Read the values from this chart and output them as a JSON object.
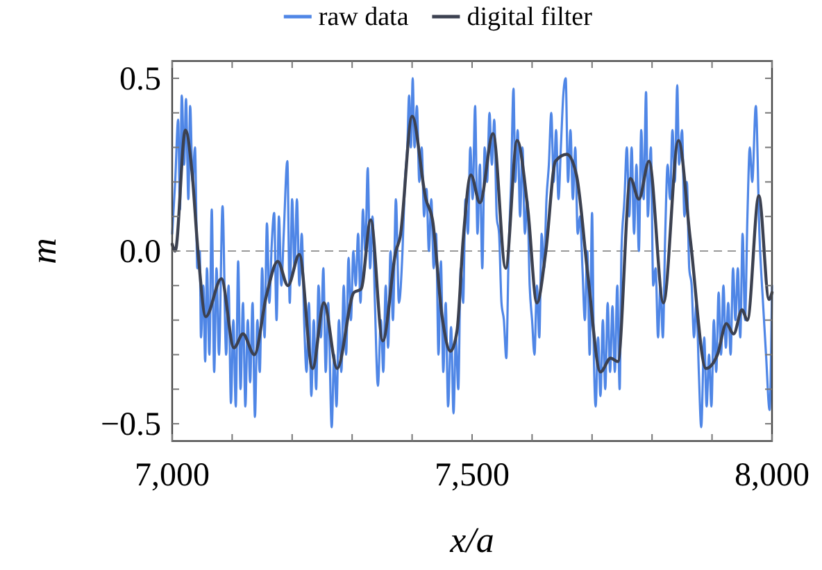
{
  "chart_data": {
    "type": "line",
    "xlabel": "x/a",
    "ylabel": "m",
    "legend": "top",
    "xlim": [
      7000,
      8000
    ],
    "ylim": [
      -0.55,
      0.55
    ],
    "xticks": [
      {
        "value": 7000,
        "label": "7,000"
      },
      {
        "value": 7100,
        "label": null
      },
      {
        "value": 7200,
        "label": null
      },
      {
        "value": 7300,
        "label": null
      },
      {
        "value": 7400,
        "label": null
      },
      {
        "value": 7500,
        "label": "7,500"
      },
      {
        "value": 7600,
        "label": null
      },
      {
        "value": 7700,
        "label": null
      },
      {
        "value": 7800,
        "label": null
      },
      {
        "value": 7900,
        "label": null
      },
      {
        "value": 8000,
        "label": "8,000"
      }
    ],
    "yticks": [
      {
        "value": -0.5,
        "label": "−0.5"
      },
      {
        "value": -0.4,
        "label": null
      },
      {
        "value": -0.3,
        "label": null
      },
      {
        "value": -0.2,
        "label": null
      },
      {
        "value": -0.1,
        "label": null
      },
      {
        "value": 0,
        "label": "0.0"
      },
      {
        "value": 0.1,
        "label": null
      },
      {
        "value": 0.2,
        "label": null
      },
      {
        "value": 0.3,
        "label": null
      },
      {
        "value": 0.4,
        "label": null
      },
      {
        "value": 0.5,
        "label": "0.5"
      }
    ],
    "ref_lines": [
      {
        "axis": "y",
        "value": 0,
        "color": "#999999",
        "line_style": "dashed"
      }
    ],
    "series": [
      {
        "name": "raw data",
        "color": "#4f86e6",
        "x": [
          7000,
          7005,
          7010,
          7013,
          7016,
          7020,
          7023,
          7027,
          7030,
          7034,
          7038,
          7042,
          7046,
          7048,
          7052,
          7055,
          7058,
          7062,
          7066,
          7070,
          7074,
          7078,
          7084,
          7090,
          7094,
          7098,
          7102,
          7106,
          7110,
          7114,
          7118,
          7122,
          7126,
          7130,
          7134,
          7138,
          7142,
          7146,
          7150,
          7154,
          7158,
          7162,
          7166,
          7170,
          7174,
          7178,
          7182,
          7186,
          7192,
          7196,
          7200,
          7204,
          7208,
          7212,
          7216,
          7220,
          7224,
          7228,
          7232,
          7236,
          7240,
          7244,
          7248,
          7252,
          7256,
          7260,
          7266,
          7270,
          7274,
          7278,
          7282,
          7286,
          7290,
          7294,
          7298,
          7302,
          7306,
          7310,
          7314,
          7318,
          7322,
          7326,
          7330,
          7334,
          7338,
          7343,
          7348,
          7352,
          7356,
          7360,
          7364,
          7368,
          7373,
          7378,
          7384,
          7388,
          7392,
          7395,
          7398,
          7401,
          7404,
          7408,
          7412,
          7416,
          7420,
          7424,
          7428,
          7432,
          7436,
          7440,
          7444,
          7448,
          7452,
          7456,
          7460,
          7465,
          7469,
          7473,
          7477,
          7481,
          7485,
          7489,
          7493,
          7497,
          7501,
          7505,
          7509,
          7513,
          7517,
          7521,
          7525,
          7529,
          7533,
          7537,
          7541,
          7545,
          7549,
          7553,
          7557,
          7561,
          7565,
          7569,
          7572,
          7576,
          7580,
          7584,
          7588,
          7592,
          7596,
          7600,
          7604,
          7608,
          7612,
          7616,
          7620,
          7624,
          7628,
          7632,
          7636,
          7640,
          7644,
          7648,
          7652,
          7656,
          7660,
          7664,
          7668,
          7672,
          7676,
          7680,
          7684,
          7688,
          7692,
          7696,
          7700,
          7703,
          7706,
          7710,
          7714,
          7718,
          7722,
          7726,
          7730,
          7734,
          7738,
          7742,
          7746,
          7749,
          7754,
          7758,
          7762,
          7766,
          7770,
          7774,
          7778,
          7782,
          7786,
          7790,
          7793,
          7798,
          7802,
          7806,
          7810,
          7814,
          7818,
          7822,
          7826,
          7830,
          7834,
          7838,
          7842,
          7845,
          7850,
          7854,
          7858,
          7862,
          7866,
          7870,
          7874,
          7878,
          7882,
          7887,
          7891,
          7895,
          7899,
          7903,
          7907,
          7911,
          7915,
          7919,
          7923,
          7927,
          7931,
          7935,
          7939,
          7943,
          7947,
          7951,
          7955,
          7959,
          7963,
          7967,
          7973,
          7979,
          7985,
          7990,
          7996,
          8000
        ],
        "values": [
          0.05,
          0.2,
          0.38,
          0.12,
          0.45,
          0.25,
          0.44,
          0.15,
          0.42,
          0.2,
          0.3,
          -0.05,
          0.0,
          -0.25,
          -0.1,
          -0.32,
          -0.05,
          -0.3,
          0.12,
          -0.35,
          -0.05,
          -0.3,
          0.13,
          -0.3,
          -0.1,
          -0.44,
          -0.2,
          -0.45,
          -0.03,
          -0.4,
          -0.15,
          -0.45,
          -0.2,
          -0.38,
          -0.15,
          -0.48,
          -0.2,
          -0.35,
          -0.05,
          -0.25,
          0.08,
          -0.15,
          0.02,
          0.11,
          -0.2,
          0.1,
          -0.1,
          0.05,
          0.26,
          -0.15,
          0.15,
          -0.05,
          0.15,
          -0.1,
          0.05,
          -0.2,
          -0.35,
          -0.15,
          -0.42,
          -0.2,
          -0.4,
          -0.1,
          -0.25,
          -0.05,
          -0.35,
          -0.15,
          -0.51,
          -0.3,
          -0.45,
          -0.2,
          -0.35,
          -0.1,
          -0.3,
          -0.02,
          -0.2,
          0.0,
          -0.1,
          0.05,
          -0.15,
          0.12,
          0.0,
          0.24,
          -0.05,
          0.1,
          -0.15,
          -0.39,
          -0.2,
          -0.35,
          -0.1,
          -0.28,
          0.0,
          -0.2,
          0.15,
          -0.15,
          0.0,
          0.2,
          0.3,
          0.45,
          0.3,
          0.5,
          0.3,
          0.42,
          0.2,
          0.3,
          0.1,
          0.18,
          0.0,
          0.15,
          -0.05,
          0.05,
          -0.3,
          -0.03,
          -0.35,
          -0.15,
          -0.45,
          -0.22,
          -0.47,
          -0.25,
          -0.4,
          -0.05,
          -0.15,
          0.15,
          0.05,
          0.3,
          0.15,
          0.42,
          0.05,
          0.25,
          -0.05,
          0.3,
          0.2,
          0.4,
          0.25,
          0.38,
          0.1,
          0.05,
          -0.15,
          -0.2,
          -0.31,
          0.0,
          0.2,
          0.47,
          0.2,
          0.35,
          0.1,
          0.3,
          0.05,
          0.15,
          -0.1,
          -0.2,
          -0.3,
          -0.1,
          -0.25,
          0.05,
          -0.05,
          0.15,
          0.25,
          0.4,
          0.2,
          0.35,
          0.15,
          0.3,
          0.45,
          0.5,
          0.2,
          0.35,
          0.15,
          0.3,
          0.05,
          0.1,
          -0.05,
          -0.2,
          0.0,
          -0.3,
          0.11,
          -0.3,
          -0.45,
          -0.25,
          -0.42,
          -0.2,
          -0.4,
          -0.15,
          -0.35,
          -0.16,
          -0.35,
          -0.1,
          -0.4,
          0.0,
          0.15,
          0.3,
          0.1,
          0.3,
          0.05,
          0.25,
          0.0,
          0.35,
          0.15,
          0.46,
          0.1,
          0.3,
          -0.1,
          -0.05,
          -0.25,
          -0.1,
          -0.25,
          0.05,
          0.25,
          0.15,
          0.35,
          0.2,
          0.48,
          0.25,
          0.35,
          0.1,
          0.2,
          -0.05,
          -0.1,
          -0.25,
          -0.15,
          -0.35,
          -0.51,
          -0.25,
          -0.45,
          -0.3,
          -0.45,
          -0.2,
          -0.35,
          -0.12,
          -0.3,
          -0.1,
          -0.28,
          -0.15,
          -0.3,
          -0.05,
          -0.2,
          -0.05,
          -0.25,
          0.05,
          -0.2,
          0.1,
          0.3,
          0.2,
          0.42,
          0.05,
          -0.15,
          -0.3,
          -0.46,
          -0.1
        ]
      },
      {
        "name": "digital filter",
        "color": "#3c4150",
        "x": [
          7000,
          7005,
          7022,
          7033,
          7043,
          7056,
          7082,
          7103,
          7118,
          7137,
          7157,
          7176,
          7193,
          7212,
          7234,
          7253,
          7275,
          7303,
          7315,
          7331,
          7351,
          7373,
          7380,
          7400,
          7423,
          7434,
          7450,
          7464,
          7475,
          7485,
          7498,
          7513,
          7535,
          7556,
          7575,
          7593,
          7608,
          7623,
          7639,
          7658,
          7674,
          7693,
          7714,
          7731,
          7743,
          7764,
          7778,
          7795,
          7819,
          7844,
          7864,
          7890,
          7909,
          7924,
          7936,
          7950,
          7959,
          7978,
          7995,
          8000
        ],
        "values": [
          0.02,
          0.0,
          0.35,
          0.23,
          0.0,
          -0.19,
          -0.08,
          -0.28,
          -0.24,
          -0.3,
          -0.13,
          -0.03,
          -0.1,
          -0.01,
          -0.34,
          -0.15,
          -0.34,
          -0.12,
          -0.11,
          0.09,
          -0.26,
          0.0,
          0.04,
          0.39,
          0.15,
          0.09,
          -0.19,
          -0.29,
          -0.23,
          0.03,
          0.22,
          0.14,
          0.34,
          -0.05,
          0.32,
          0.12,
          -0.15,
          0.0,
          0.26,
          0.28,
          0.22,
          -0.07,
          -0.35,
          -0.31,
          -0.32,
          0.21,
          0.15,
          0.26,
          -0.15,
          0.32,
          0.03,
          -0.34,
          -0.3,
          -0.21,
          -0.24,
          -0.17,
          -0.2,
          0.16,
          -0.14,
          -0.12
        ]
      }
    ]
  }
}
